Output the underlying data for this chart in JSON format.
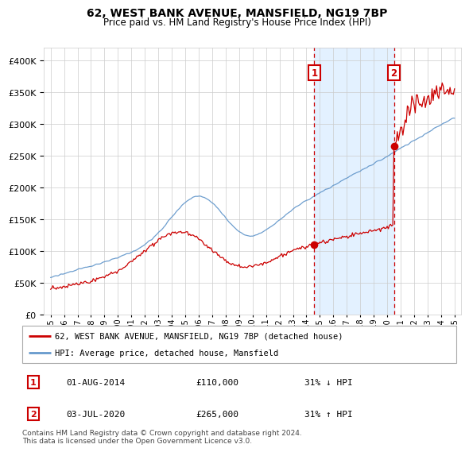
{
  "title": "62, WEST BANK AVENUE, MANSFIELD, NG19 7BP",
  "subtitle": "Price paid vs. HM Land Registry's House Price Index (HPI)",
  "legend_line1": "62, WEST BANK AVENUE, MANSFIELD, NG19 7BP (detached house)",
  "legend_line2": "HPI: Average price, detached house, Mansfield",
  "annotation1_date": "01-AUG-2014",
  "annotation1_price": "£110,000",
  "annotation1_pct": "31% ↓ HPI",
  "annotation2_date": "03-JUL-2020",
  "annotation2_price": "£265,000",
  "annotation2_pct": "31% ↑ HPI",
  "footer": "Contains HM Land Registry data © Crown copyright and database right 2024.\nThis data is licensed under the Open Government Licence v3.0.",
  "hpi_color": "#6699cc",
  "price_color": "#cc0000",
  "dot_color": "#cc0000",
  "vline_color": "#cc0000",
  "shade_color": "#ddeeff",
  "grid_color": "#cccccc",
  "background_color": "#ffffff",
  "anno_box_color": "#cc0000",
  "ylim": [
    0,
    420000
  ],
  "yticks": [
    0,
    50000,
    100000,
    150000,
    200000,
    250000,
    300000,
    350000,
    400000
  ],
  "sale1_x": 2014.58,
  "sale1_y": 110000,
  "sale2_x": 2020.5,
  "sale2_y": 265000,
  "shade_x1": 2014.58,
  "shade_x2": 2020.5,
  "xlim": [
    1994.5,
    2025.5
  ]
}
